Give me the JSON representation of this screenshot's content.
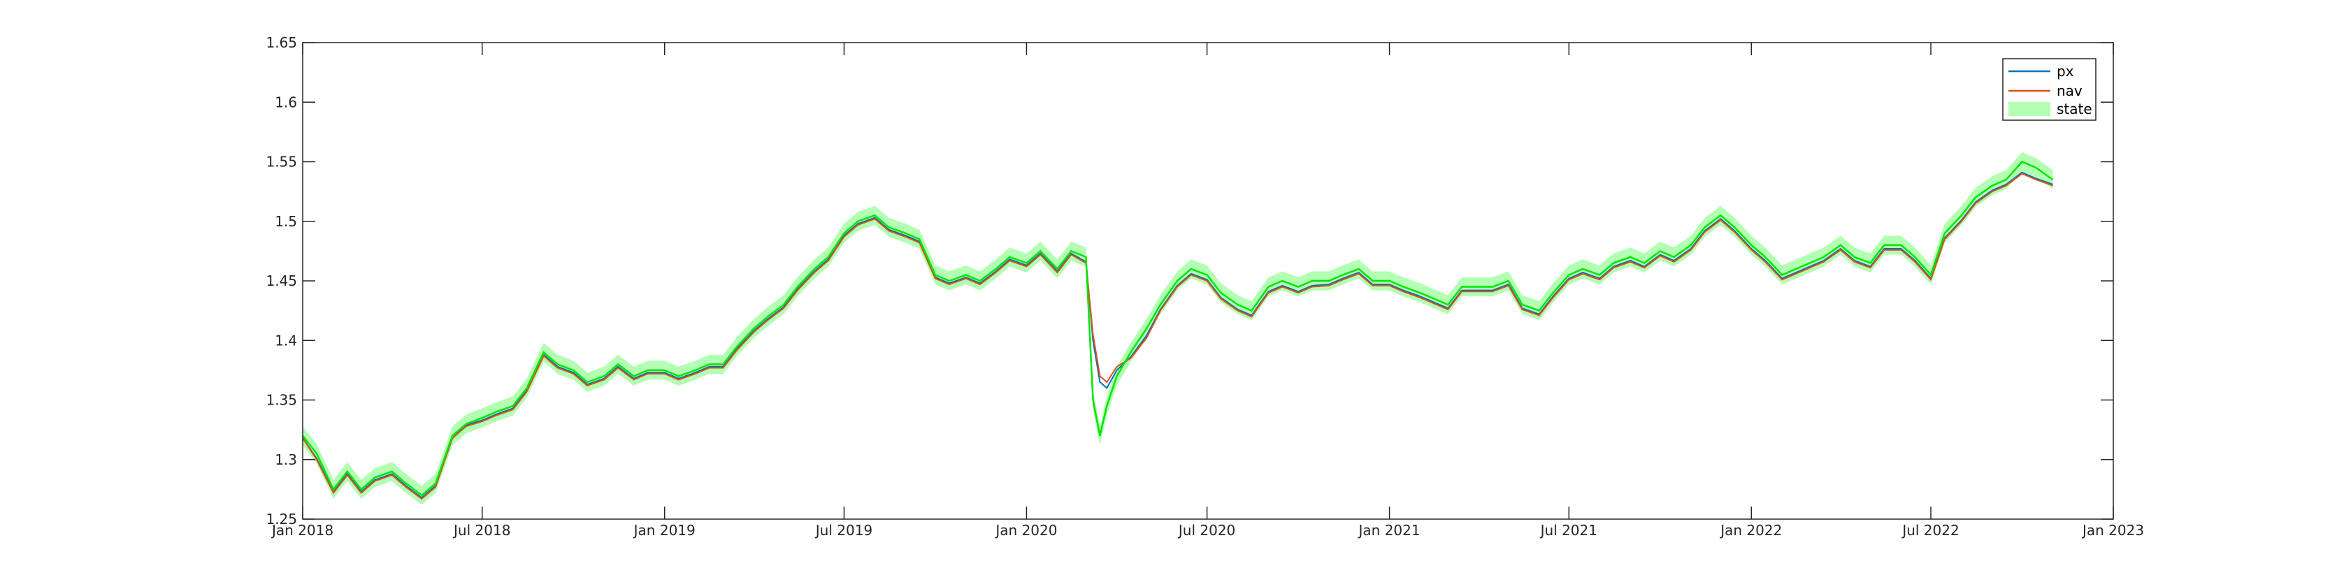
{
  "chart_data": {
    "type": "line",
    "title": "",
    "xlabel": "",
    "ylabel": "",
    "xlim": [
      "2018-01-01",
      "2023-01-01"
    ],
    "ylim": [
      1.25,
      1.65
    ],
    "grid": false,
    "legend_position": "top-right",
    "x_ticks": [
      {
        "date": "2018-01-01",
        "label": "Jan 2018"
      },
      {
        "date": "2018-07-01",
        "label": "Jul 2018"
      },
      {
        "date": "2019-01-01",
        "label": "Jan 2019"
      },
      {
        "date": "2019-07-01",
        "label": "Jul 2019"
      },
      {
        "date": "2020-01-01",
        "label": "Jan 2020"
      },
      {
        "date": "2020-07-01",
        "label": "Jul 2020"
      },
      {
        "date": "2021-01-01",
        "label": "Jan 2021"
      },
      {
        "date": "2021-07-01",
        "label": "Jul 2021"
      },
      {
        "date": "2022-01-01",
        "label": "Jan 2022"
      },
      {
        "date": "2022-07-01",
        "label": "Jul 2022"
      },
      {
        "date": "2023-01-01",
        "label": "Jan 2023"
      }
    ],
    "y_ticks": [
      {
        "value": 1.25,
        "label": "1.25"
      },
      {
        "value": 1.3,
        "label": "1.3"
      },
      {
        "value": 1.35,
        "label": "1.35"
      },
      {
        "value": 1.4,
        "label": "1.4"
      },
      {
        "value": 1.45,
        "label": "1.45"
      },
      {
        "value": 1.5,
        "label": "1.5"
      },
      {
        "value": 1.55,
        "label": "1.55"
      },
      {
        "value": 1.6,
        "label": "1.6"
      },
      {
        "value": 1.65,
        "label": "1.65"
      }
    ],
    "state_band_halfwidth": 0.008,
    "series": [
      {
        "name": "px",
        "color": "#0072BD",
        "kind": "line"
      },
      {
        "name": "nav",
        "color": "#D95319",
        "kind": "line"
      },
      {
        "name": "state",
        "color": "#00E600",
        "band_color": "#B3FFB3",
        "kind": "band"
      }
    ],
    "x": [
      "2018-01-01",
      "2018-01-15",
      "2018-02-01",
      "2018-02-15",
      "2018-03-01",
      "2018-03-15",
      "2018-04-01",
      "2018-04-15",
      "2018-05-01",
      "2018-05-15",
      "2018-06-01",
      "2018-06-15",
      "2018-07-01",
      "2018-07-15",
      "2018-08-01",
      "2018-08-15",
      "2018-09-01",
      "2018-09-15",
      "2018-10-01",
      "2018-10-15",
      "2018-11-01",
      "2018-11-15",
      "2018-12-01",
      "2018-12-15",
      "2019-01-01",
      "2019-01-15",
      "2019-02-01",
      "2019-02-15",
      "2019-03-01",
      "2019-03-15",
      "2019-04-01",
      "2019-04-15",
      "2019-05-01",
      "2019-05-15",
      "2019-06-01",
      "2019-06-15",
      "2019-07-01",
      "2019-07-15",
      "2019-08-01",
      "2019-08-15",
      "2019-09-01",
      "2019-09-15",
      "2019-10-01",
      "2019-10-15",
      "2019-11-01",
      "2019-11-15",
      "2019-12-01",
      "2019-12-15",
      "2020-01-01",
      "2020-01-15",
      "2020-02-01",
      "2020-02-15",
      "2020-03-01",
      "2020-03-08",
      "2020-03-15",
      "2020-03-22",
      "2020-04-01",
      "2020-04-15",
      "2020-05-01",
      "2020-05-15",
      "2020-06-01",
      "2020-06-15",
      "2020-07-01",
      "2020-07-15",
      "2020-08-01",
      "2020-08-15",
      "2020-09-01",
      "2020-09-15",
      "2020-10-01",
      "2020-10-15",
      "2020-11-01",
      "2020-11-15",
      "2020-12-01",
      "2020-12-15",
      "2021-01-01",
      "2021-01-15",
      "2021-02-01",
      "2021-02-15",
      "2021-03-01",
      "2021-03-15",
      "2021-04-01",
      "2021-04-15",
      "2021-05-01",
      "2021-05-15",
      "2021-06-01",
      "2021-06-15",
      "2021-07-01",
      "2021-07-15",
      "2021-08-01",
      "2021-08-15",
      "2021-09-01",
      "2021-09-15",
      "2021-10-01",
      "2021-10-15",
      "2021-11-01",
      "2021-11-15",
      "2021-12-01",
      "2021-12-15",
      "2022-01-01",
      "2022-01-15",
      "2022-02-01",
      "2022-02-15",
      "2022-03-01",
      "2022-03-15",
      "2022-04-01",
      "2022-04-15",
      "2022-05-01",
      "2022-05-15",
      "2022-06-01",
      "2022-06-15",
      "2022-07-01",
      "2022-07-15",
      "2022-08-01",
      "2022-08-15",
      "2022-09-01",
      "2022-09-15",
      "2022-10-01",
      "2022-10-15",
      "2022-11-01"
    ],
    "state": [
      1.32,
      1.305,
      1.275,
      1.29,
      1.275,
      1.285,
      1.29,
      1.28,
      1.27,
      1.28,
      1.32,
      1.33,
      1.335,
      1.34,
      1.345,
      1.36,
      1.39,
      1.38,
      1.375,
      1.365,
      1.37,
      1.38,
      1.37,
      1.375,
      1.375,
      1.37,
      1.375,
      1.38,
      1.38,
      1.395,
      1.41,
      1.42,
      1.43,
      1.445,
      1.46,
      1.47,
      1.49,
      1.5,
      1.505,
      1.495,
      1.49,
      1.485,
      1.455,
      1.45,
      1.455,
      1.45,
      1.46,
      1.47,
      1.465,
      1.475,
      1.46,
      1.475,
      1.47,
      1.35,
      1.32,
      1.345,
      1.37,
      1.39,
      1.41,
      1.43,
      1.45,
      1.46,
      1.455,
      1.44,
      1.43,
      1.425,
      1.445,
      1.45,
      1.445,
      1.45,
      1.45,
      1.455,
      1.46,
      1.45,
      1.45,
      1.445,
      1.44,
      1.435,
      1.43,
      1.445,
      1.445,
      1.445,
      1.45,
      1.43,
      1.425,
      1.44,
      1.455,
      1.46,
      1.455,
      1.465,
      1.47,
      1.465,
      1.475,
      1.47,
      1.48,
      1.495,
      1.505,
      1.495,
      1.48,
      1.47,
      1.455,
      1.46,
      1.465,
      1.47,
      1.48,
      1.47,
      1.465,
      1.48,
      1.48,
      1.47,
      1.455,
      1.49,
      1.505,
      1.52,
      1.53,
      1.535,
      1.55,
      1.545,
      1.535
    ],
    "nav": [
      1.318,
      1.3,
      1.272,
      1.287,
      1.272,
      1.282,
      1.287,
      1.277,
      1.267,
      1.277,
      1.318,
      1.328,
      1.332,
      1.337,
      1.342,
      1.357,
      1.387,
      1.377,
      1.372,
      1.362,
      1.367,
      1.377,
      1.367,
      1.372,
      1.372,
      1.367,
      1.372,
      1.377,
      1.377,
      1.392,
      1.407,
      1.417,
      1.427,
      1.442,
      1.457,
      1.467,
      1.487,
      1.497,
      1.502,
      1.492,
      1.487,
      1.482,
      1.452,
      1.447,
      1.452,
      1.447,
      1.457,
      1.467,
      1.462,
      1.472,
      1.457,
      1.472,
      1.465,
      1.405,
      1.37,
      1.365,
      1.378,
      1.385,
      1.402,
      1.425,
      1.445,
      1.455,
      1.45,
      1.435,
      1.425,
      1.42,
      1.44,
      1.445,
      1.44,
      1.445,
      1.446,
      1.451,
      1.456,
      1.446,
      1.446,
      1.441,
      1.436,
      1.431,
      1.426,
      1.441,
      1.441,
      1.441,
      1.446,
      1.426,
      1.421,
      1.436,
      1.451,
      1.456,
      1.451,
      1.461,
      1.466,
      1.461,
      1.471,
      1.466,
      1.476,
      1.491,
      1.501,
      1.491,
      1.476,
      1.466,
      1.451,
      1.456,
      1.461,
      1.466,
      1.476,
      1.466,
      1.461,
      1.476,
      1.476,
      1.466,
      1.451,
      1.485,
      1.5,
      1.515,
      1.525,
      1.53,
      1.54,
      1.535,
      1.53
    ],
    "px": [
      1.318,
      1.301,
      1.273,
      1.288,
      1.273,
      1.283,
      1.288,
      1.278,
      1.268,
      1.278,
      1.318,
      1.329,
      1.333,
      1.338,
      1.343,
      1.358,
      1.388,
      1.378,
      1.373,
      1.363,
      1.368,
      1.378,
      1.368,
      1.373,
      1.373,
      1.368,
      1.373,
      1.378,
      1.378,
      1.393,
      1.408,
      1.418,
      1.428,
      1.443,
      1.458,
      1.468,
      1.488,
      1.498,
      1.503,
      1.493,
      1.488,
      1.483,
      1.453,
      1.448,
      1.453,
      1.448,
      1.458,
      1.468,
      1.463,
      1.473,
      1.458,
      1.473,
      1.466,
      1.4,
      1.365,
      1.36,
      1.375,
      1.386,
      1.404,
      1.426,
      1.446,
      1.456,
      1.451,
      1.436,
      1.426,
      1.421,
      1.441,
      1.446,
      1.441,
      1.446,
      1.447,
      1.452,
      1.457,
      1.447,
      1.447,
      1.442,
      1.437,
      1.432,
      1.427,
      1.442,
      1.442,
      1.442,
      1.447,
      1.427,
      1.422,
      1.437,
      1.452,
      1.457,
      1.452,
      1.462,
      1.467,
      1.462,
      1.472,
      1.467,
      1.477,
      1.492,
      1.502,
      1.492,
      1.477,
      1.467,
      1.452,
      1.457,
      1.462,
      1.467,
      1.477,
      1.467,
      1.462,
      1.477,
      1.477,
      1.467,
      1.452,
      1.486,
      1.501,
      1.516,
      1.526,
      1.531,
      1.541,
      1.536,
      1.531
    ]
  }
}
